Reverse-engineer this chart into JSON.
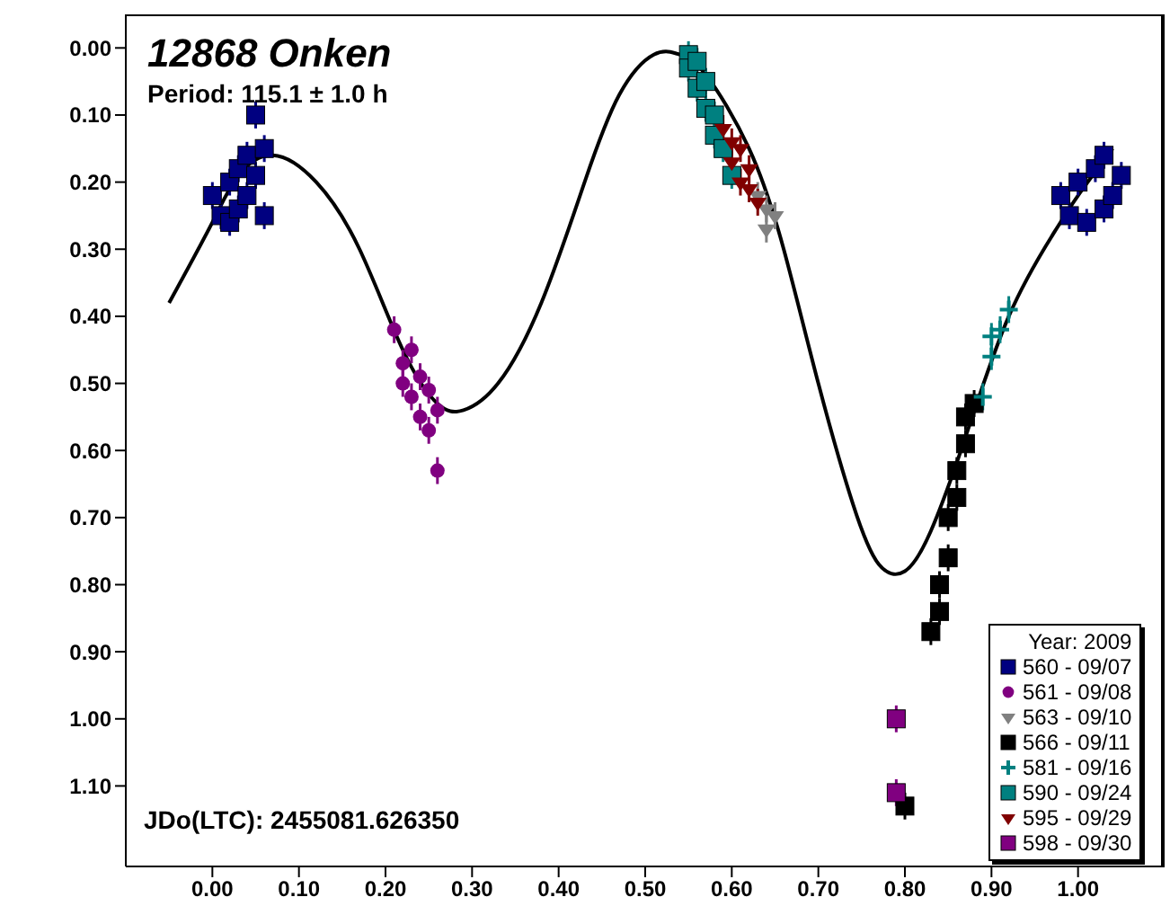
{
  "chart_data": {
    "type": "scatter",
    "title": "12868 Onken",
    "subtitle": "Period: 115.1 ± 1.0 h",
    "annotations": [
      "JDo(LTC): 2455081.626350"
    ],
    "legend_title": "Year: 2009",
    "legend": "bottom right",
    "grid": false,
    "xlim": [
      -0.1,
      1.1
    ],
    "xticks": [
      {
        "value": 0,
        "label": "0.00"
      },
      {
        "value": 0.1,
        "label": "0.10"
      },
      {
        "value": 0.2,
        "label": "0.20"
      },
      {
        "value": 0.3,
        "label": "0.30"
      },
      {
        "value": 0.4,
        "label": "0.40"
      },
      {
        "value": 0.5,
        "label": "0.50"
      },
      {
        "value": 0.6,
        "label": "0.60"
      },
      {
        "value": 0.7,
        "label": "0.70"
      },
      {
        "value": 0.8,
        "label": "0.80"
      },
      {
        "value": 0.9,
        "label": "0.90"
      },
      {
        "value": 1,
        "label": "1.00"
      }
    ],
    "ylim": [
      1.22,
      -0.05
    ],
    "yticks": [
      {
        "value": 0,
        "label": "0.00"
      },
      {
        "value": 0.1,
        "label": "0.10"
      },
      {
        "value": 0.2,
        "label": "0.20"
      },
      {
        "value": 0.3,
        "label": "0.30"
      },
      {
        "value": 0.4,
        "label": "0.40"
      },
      {
        "value": 0.5,
        "label": "0.50"
      },
      {
        "value": 0.6,
        "label": "0.60"
      },
      {
        "value": 0.7,
        "label": "0.70"
      },
      {
        "value": 0.8,
        "label": "0.80"
      },
      {
        "value": 0.9,
        "label": "0.90"
      },
      {
        "value": 1,
        "label": "1.00"
      },
      {
        "value": 1.1,
        "label": "1.10"
      }
    ],
    "series": [
      {
        "type": "line",
        "color": "#000000",
        "marker": "none",
        "line_style": "solid",
        "x": [
          -0.05,
          0.0,
          0.03,
          0.07,
          0.12,
          0.17,
          0.22,
          0.26,
          0.29,
          0.33,
          0.38,
          0.43,
          0.47,
          0.51,
          0.54,
          0.57,
          0.62,
          0.66,
          0.7,
          0.74,
          0.77,
          0.8,
          0.83,
          0.87,
          0.92,
          0.97,
          1.0,
          1.04
        ],
        "values": [
          0.38,
          0.26,
          0.19,
          0.16,
          0.2,
          0.3,
          0.45,
          0.53,
          0.54,
          0.5,
          0.38,
          0.2,
          0.07,
          0.01,
          0.01,
          0.04,
          0.15,
          0.3,
          0.5,
          0.68,
          0.77,
          0.78,
          0.72,
          0.58,
          0.4,
          0.28,
          0.22,
          0.15
        ]
      },
      {
        "name": "560 - 09/07",
        "color": "#000080",
        "marker": "square",
        "x": [
          0.0,
          0.01,
          0.02,
          0.02,
          0.03,
          0.03,
          0.04,
          0.04,
          0.05,
          0.05,
          0.06,
          0.06,
          0.98,
          0.99,
          1.0,
          1.01,
          1.02,
          1.03,
          1.03,
          1.04,
          1.05
        ],
        "values": [
          0.22,
          0.25,
          0.2,
          0.26,
          0.18,
          0.24,
          0.16,
          0.22,
          0.1,
          0.19,
          0.15,
          0.25,
          0.22,
          0.25,
          0.2,
          0.26,
          0.18,
          0.24,
          0.16,
          0.22,
          0.19
        ],
        "errors": [
          0.02,
          0.02,
          0.02,
          0.02,
          0.02,
          0.02,
          0.02,
          0.02,
          0.02,
          0.02,
          0.02,
          0.02,
          0.02,
          0.02,
          0.02,
          0.02,
          0.02,
          0.02,
          0.02,
          0.02,
          0.02
        ]
      },
      {
        "name": "561 - 09/08",
        "color": "#800080",
        "marker": "circle",
        "x": [
          0.21,
          0.22,
          0.22,
          0.23,
          0.23,
          0.24,
          0.24,
          0.25,
          0.25,
          0.26,
          0.26
        ],
        "values": [
          0.42,
          0.47,
          0.5,
          0.45,
          0.52,
          0.49,
          0.55,
          0.51,
          0.57,
          0.54,
          0.63
        ],
        "errors": [
          0.02,
          0.02,
          0.02,
          0.02,
          0.02,
          0.02,
          0.02,
          0.02,
          0.02,
          0.02,
          0.02
        ]
      },
      {
        "name": "563 - 09/10",
        "color": "#808080",
        "marker": "triangle",
        "x": [
          0.63,
          0.64,
          0.64,
          0.65
        ],
        "values": [
          0.22,
          0.24,
          0.27,
          0.25
        ],
        "errors": [
          0.02,
          0.02,
          0.02,
          0.02
        ]
      },
      {
        "name": "566 - 09/11",
        "color": "#000000",
        "marker": "square",
        "x": [
          0.83,
          0.84,
          0.84,
          0.85,
          0.85,
          0.86,
          0.86,
          0.87,
          0.87,
          0.88,
          0.8
        ],
        "values": [
          0.87,
          0.84,
          0.8,
          0.76,
          0.7,
          0.67,
          0.63,
          0.59,
          0.55,
          0.53,
          1.13
        ],
        "errors": [
          0.02,
          0.02,
          0.02,
          0.02,
          0.02,
          0.02,
          0.02,
          0.02,
          0.02,
          0.02,
          0.02
        ]
      },
      {
        "name": "581 - 09/16",
        "color": "#008080",
        "marker": "cross",
        "x": [
          0.89,
          0.9,
          0.9,
          0.91,
          0.92
        ],
        "values": [
          0.52,
          0.46,
          0.43,
          0.42,
          0.39
        ],
        "errors": [
          0.02,
          0.02,
          0.02,
          0.02,
          0.02
        ]
      },
      {
        "name": "590 - 09/24",
        "color": "#008080",
        "marker": "square",
        "x": [
          0.55,
          0.55,
          0.56,
          0.56,
          0.57,
          0.57,
          0.58,
          0.58,
          0.59,
          0.6
        ],
        "values": [
          0.01,
          0.03,
          0.02,
          0.06,
          0.05,
          0.09,
          0.1,
          0.13,
          0.15,
          0.19
        ],
        "errors": [
          0.02,
          0.02,
          0.02,
          0.02,
          0.02,
          0.02,
          0.02,
          0.02,
          0.02,
          0.02
        ]
      },
      {
        "name": "595 - 09/29",
        "color": "#800000",
        "marker": "triangle",
        "x": [
          0.59,
          0.6,
          0.6,
          0.61,
          0.61,
          0.62,
          0.62,
          0.63
        ],
        "values": [
          0.12,
          0.14,
          0.17,
          0.15,
          0.2,
          0.18,
          0.21,
          0.23
        ],
        "errors": [
          0.02,
          0.02,
          0.02,
          0.02,
          0.02,
          0.02,
          0.02,
          0.02
        ]
      },
      {
        "name": "598 - 09/30",
        "color": "#800080",
        "marker": "square",
        "x": [
          0.79,
          0.79
        ],
        "values": [
          1.0,
          1.11
        ],
        "errors": [
          0.02,
          0.02
        ]
      }
    ]
  }
}
